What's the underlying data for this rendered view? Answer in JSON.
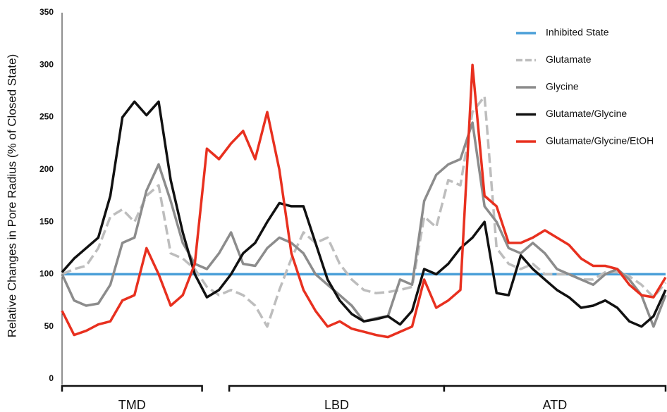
{
  "chart_data": {
    "type": "line",
    "y_label": "Relative Changes in Pore Radius (% of Closed State)",
    "x": [
      0,
      2,
      4,
      6,
      8,
      10,
      12,
      14,
      16,
      18,
      20,
      22,
      24,
      26,
      28,
      30,
      32,
      34,
      36,
      38,
      40,
      42,
      44,
      46,
      48,
      50,
      52,
      54,
      56,
      58,
      60,
      62,
      64,
      66,
      68,
      70,
      72,
      74,
      76,
      78,
      80,
      82,
      84,
      86,
      88,
      90,
      92,
      94,
      96,
      98,
      100
    ],
    "xlim": [
      0,
      100
    ],
    "ylim": [
      0,
      350
    ],
    "yticks": [
      0,
      50,
      100,
      150,
      200,
      250,
      300,
      350
    ],
    "grid": false,
    "legend": "top-right",
    "regions": [
      {
        "label": "TMD",
        "start": 0,
        "end": 23.2
      },
      {
        "label": "LBD",
        "start": 27.7,
        "end": 63.3
      },
      {
        "label": "ATD",
        "start": 63.3,
        "end": 100
      }
    ],
    "series": [
      {
        "name": "Inhibited State",
        "color": "#4a9fd8",
        "dash": false,
        "values": [
          100,
          100,
          100,
          100,
          100,
          100,
          100,
          100,
          100,
          100,
          100,
          100,
          100,
          100,
          100,
          100,
          100,
          100,
          100,
          100,
          100,
          100,
          100,
          100,
          100,
          100,
          100,
          100,
          100,
          100,
          100,
          100,
          100,
          100,
          100,
          100,
          100,
          100,
          100,
          100,
          100,
          100,
          100,
          100,
          100,
          100,
          100,
          100,
          100,
          100,
          100
        ]
      },
      {
        "name": "Glutamate",
        "color": "#bdbdbd",
        "dash": true,
        "values": [
          100,
          105,
          108,
          125,
          155,
          162,
          150,
          175,
          185,
          120,
          115,
          105,
          88,
          80,
          85,
          80,
          70,
          50,
          85,
          115,
          140,
          130,
          135,
          110,
          95,
          85,
          82,
          83,
          85,
          88,
          155,
          145,
          190,
          185,
          255,
          270,
          125,
          110,
          105,
          110,
          100,
          100,
          100,
          95,
          95,
          102,
          102,
          98,
          90,
          78,
          92
        ]
      },
      {
        "name": "Glycine",
        "color": "#8c8c8c",
        "dash": false,
        "values": [
          100,
          75,
          70,
          72,
          90,
          130,
          135,
          180,
          205,
          170,
          130,
          110,
          105,
          120,
          140,
          110,
          108,
          125,
          135,
          130,
          120,
          100,
          90,
          80,
          70,
          55,
          58,
          60,
          95,
          90,
          170,
          195,
          205,
          210,
          245,
          165,
          150,
          125,
          120,
          130,
          120,
          105,
          100,
          95,
          90,
          100,
          105,
          95,
          80,
          50,
          80
        ]
      },
      {
        "name": "Glutamate/Glycine",
        "color": "#111111",
        "dash": false,
        "values": [
          102,
          115,
          125,
          135,
          175,
          250,
          265,
          252,
          265,
          190,
          140,
          100,
          78,
          85,
          100,
          120,
          130,
          150,
          168,
          165,
          165,
          130,
          95,
          75,
          62,
          55,
          57,
          60,
          52,
          65,
          105,
          100,
          110,
          125,
          135,
          150,
          82,
          80,
          118,
          105,
          95,
          85,
          78,
          68,
          70,
          75,
          68,
          55,
          50,
          60,
          85
        ]
      },
      {
        "name": "Glutamate/Glycine/EtOH",
        "color": "#e8301f",
        "dash": false,
        "values": [
          65,
          42,
          46,
          52,
          55,
          75,
          80,
          125,
          100,
          70,
          80,
          110,
          220,
          210,
          225,
          237,
          210,
          255,
          200,
          120,
          85,
          65,
          50,
          55,
          48,
          45,
          42,
          40,
          45,
          50,
          95,
          68,
          75,
          85,
          300,
          175,
          165,
          130,
          130,
          135,
          142,
          135,
          128,
          115,
          108,
          108,
          105,
          90,
          80,
          78,
          97
        ]
      }
    ]
  }
}
